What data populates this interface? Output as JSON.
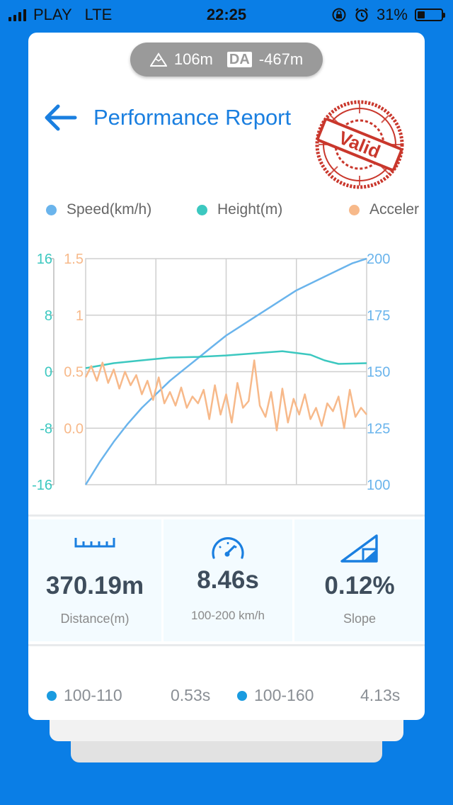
{
  "status_bar": {
    "carrier": "PLAY",
    "network": "LTE",
    "time": "22:25",
    "battery": "31%",
    "battery_level": 0.31
  },
  "altitude_pill": {
    "altitude": "106m",
    "da_badge": "DA",
    "density_altitude": "-467m"
  },
  "header": {
    "title": "Performance Report",
    "stamp_text": "Valid"
  },
  "colors": {
    "speed": "#6ab4ec",
    "height": "#3cc8c0",
    "acceleration": "#f7b98a",
    "accent": "#1a7fe0"
  },
  "legend": [
    {
      "label": "Speed(km/h)",
      "color": "#6ab4ec"
    },
    {
      "label": "Height(m)",
      "color": "#3cc8c0"
    },
    {
      "label": "Acceler",
      "color": "#f7b98a"
    }
  ],
  "chart_data": {
    "type": "line",
    "axes": {
      "height": {
        "ticks": [
          "16",
          "8",
          "0",
          "-8",
          "-16"
        ],
        "range": [
          -16,
          16
        ]
      },
      "acceleration": {
        "ticks": [
          "1.5",
          "1",
          "0.5",
          "0.0"
        ],
        "range": [
          -0.5,
          1.5
        ]
      },
      "speed": {
        "ticks": [
          "200",
          "175",
          "150",
          "125",
          "100"
        ],
        "range": [
          100,
          200
        ]
      }
    },
    "grid": true,
    "series": [
      {
        "name": "Speed(km/h)",
        "axis": "speed",
        "color": "#6ab4ec",
        "x": [
          0,
          0.05,
          0.1,
          0.15,
          0.2,
          0.25,
          0.3,
          0.35,
          0.4,
          0.45,
          0.5,
          0.55,
          0.6,
          0.65,
          0.7,
          0.75,
          0.8,
          0.85,
          0.9,
          0.95,
          1.0
        ],
        "values": [
          100,
          110,
          119,
          127,
          134,
          140,
          146,
          151,
          156,
          161,
          166,
          170,
          174,
          178,
          182,
          186,
          189,
          192,
          195,
          198,
          200
        ]
      },
      {
        "name": "Height(m)",
        "axis": "height",
        "color": "#3cc8c0",
        "x": [
          0,
          0.1,
          0.2,
          0.3,
          0.4,
          0.5,
          0.6,
          0.7,
          0.8,
          0.85,
          0.9,
          1.0
        ],
        "values": [
          0.5,
          1.2,
          1.6,
          2.0,
          2.1,
          2.3,
          2.6,
          2.9,
          2.4,
          1.6,
          1.1,
          1.2
        ]
      },
      {
        "name": "Acceleration",
        "axis": "acceleration",
        "color": "#f7b98a",
        "x": [
          0,
          0.02,
          0.04,
          0.06,
          0.08,
          0.1,
          0.12,
          0.14,
          0.16,
          0.18,
          0.2,
          0.22,
          0.24,
          0.26,
          0.28,
          0.3,
          0.32,
          0.34,
          0.36,
          0.38,
          0.4,
          0.42,
          0.44,
          0.46,
          0.48,
          0.5,
          0.52,
          0.54,
          0.56,
          0.58,
          0.6,
          0.62,
          0.64,
          0.66,
          0.68,
          0.7,
          0.72,
          0.74,
          0.76,
          0.78,
          0.8,
          0.82,
          0.84,
          0.86,
          0.88,
          0.9,
          0.92,
          0.94,
          0.96,
          0.98,
          1.0
        ],
        "values": [
          0.45,
          0.55,
          0.42,
          0.58,
          0.4,
          0.52,
          0.35,
          0.5,
          0.38,
          0.47,
          0.3,
          0.42,
          0.25,
          0.45,
          0.22,
          0.32,
          0.2,
          0.36,
          0.18,
          0.28,
          0.22,
          0.34,
          0.08,
          0.38,
          0.12,
          0.3,
          0.05,
          0.4,
          0.18,
          0.24,
          0.6,
          0.2,
          0.1,
          0.32,
          -0.02,
          0.35,
          0.05,
          0.26,
          0.12,
          0.3,
          0.08,
          0.18,
          0.02,
          0.22,
          0.15,
          0.28,
          0.0,
          0.34,
          0.1,
          0.18,
          0.12
        ]
      }
    ]
  },
  "stats": [
    {
      "value": "370.19m",
      "label": "Distance(m)",
      "icon": "ruler-icon"
    },
    {
      "value": "8.46s",
      "label": "100-200 km/h",
      "icon": "speedometer-icon"
    },
    {
      "value": "0.12%",
      "label": "Slope",
      "icon": "slope-icon"
    }
  ],
  "splits": [
    {
      "label": "100-110",
      "time": "0.53s"
    },
    {
      "label": "100-160",
      "time": "4.13s"
    }
  ]
}
